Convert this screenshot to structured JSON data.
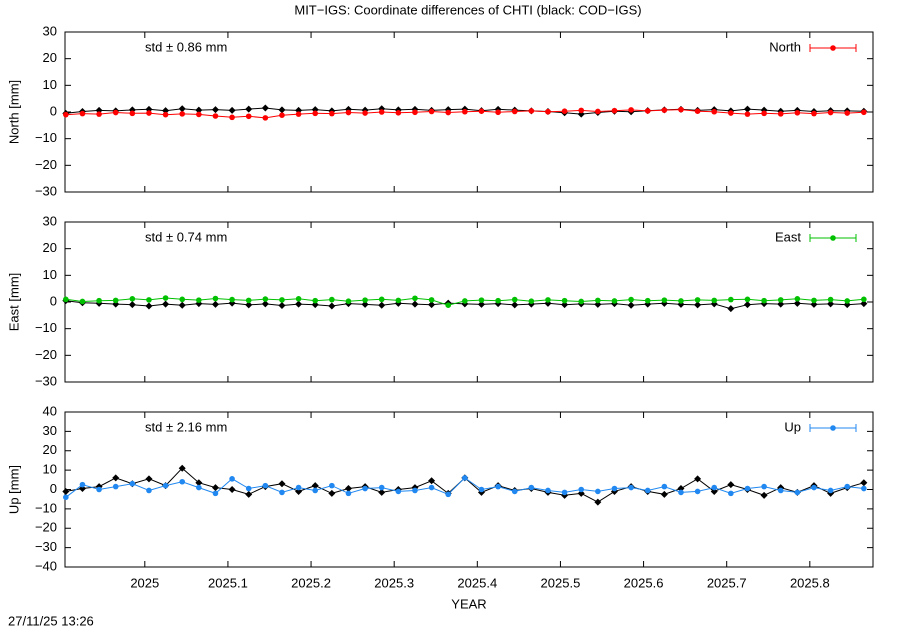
{
  "footer": "27/11/25 13:26",
  "chart_data": [
    {
      "type": "scatter",
      "title": "MIT−IGS: Coordinate differences of CHTI (black: COD−IGS)",
      "ylabel": "North [mm]",
      "annotation": "std ± 0.86 mm",
      "x": [
        2024.905,
        2024.925,
        2024.945,
        2024.965,
        2024.985,
        2025.005,
        2025.025,
        2025.045,
        2025.065,
        2025.085,
        2025.105,
        2025.125,
        2025.145,
        2025.165,
        2025.185,
        2025.205,
        2025.225,
        2025.245,
        2025.265,
        2025.285,
        2025.305,
        2025.325,
        2025.345,
        2025.365,
        2025.385,
        2025.405,
        2025.425,
        2025.445,
        2025.465,
        2025.485,
        2025.505,
        2025.525,
        2025.545,
        2025.565,
        2025.585,
        2025.605,
        2025.625,
        2025.645,
        2025.665,
        2025.685,
        2025.705,
        2025.725,
        2025.745,
        2025.765,
        2025.785,
        2025.805,
        2025.825,
        2025.845,
        2025.865
      ],
      "series": [
        {
          "color": "#000000",
          "values": [
            -0.5,
            0.2,
            0.6,
            0.4,
            0.8,
            1.0,
            0.5,
            1.2,
            0.7,
            0.9,
            0.6,
            1.1,
            1.5,
            0.8,
            0.6,
            0.9,
            0.4,
            1.0,
            0.7,
            1.2,
            0.8,
            1.0,
            0.6,
            0.9,
            1.1,
            0.5,
            1.0,
            0.7,
            0.4,
            0.2,
            -0.3,
            -0.8,
            -0.2,
            0.3,
            0.1,
            0.5,
            0.8,
            1.0,
            0.6,
            0.9,
            0.4,
            1.1,
            0.7,
            0.3,
            0.6,
            0.2,
            0.5,
            0.4,
            0.3
          ]
        },
        {
          "name": "North",
          "color": "#ff0000",
          "values": [
            -1.0,
            -0.6,
            -0.8,
            -0.2,
            -0.5,
            -0.4,
            -1.0,
            -0.7,
            -0.9,
            -1.5,
            -2.0,
            -1.6,
            -2.2,
            -1.2,
            -0.8,
            -0.5,
            -0.6,
            -0.2,
            -0.4,
            0.0,
            -0.3,
            -0.1,
            0.2,
            -0.2,
            0.1,
            0.3,
            -0.1,
            0.2,
            0.4,
            0.1,
            0.3,
            0.6,
            0.2,
            0.5,
            0.8,
            0.4,
            0.7,
            0.9,
            0.3,
            0.1,
            -0.4,
            -0.8,
            -0.5,
            -0.7,
            -0.3,
            -0.6,
            -0.2,
            -0.4,
            -0.1
          ]
        }
      ],
      "xlim": [
        2024.904,
        2025.876
      ],
      "ylim": [
        -30,
        30
      ],
      "yticks": [
        {
          "value": -30,
          "label": "−30"
        },
        {
          "value": -20,
          "label": "−20"
        },
        {
          "value": -10,
          "label": "−10"
        },
        0,
        10,
        20,
        30
      ]
    },
    {
      "type": "scatter",
      "ylabel": "East [mm]",
      "annotation": "std ± 0.74 mm",
      "x": [
        2024.905,
        2024.925,
        2024.945,
        2024.965,
        2024.985,
        2025.005,
        2025.025,
        2025.045,
        2025.065,
        2025.085,
        2025.105,
        2025.125,
        2025.145,
        2025.165,
        2025.185,
        2025.205,
        2025.225,
        2025.245,
        2025.265,
        2025.285,
        2025.305,
        2025.325,
        2025.345,
        2025.365,
        2025.385,
        2025.405,
        2025.425,
        2025.445,
        2025.465,
        2025.485,
        2025.505,
        2025.525,
        2025.545,
        2025.565,
        2025.585,
        2025.605,
        2025.625,
        2025.645,
        2025.665,
        2025.685,
        2025.705,
        2025.725,
        2025.745,
        2025.765,
        2025.785,
        2025.805,
        2025.825,
        2025.845,
        2025.865
      ],
      "series": [
        {
          "color": "#000000",
          "values": [
            0.5,
            -0.3,
            -0.5,
            -0.8,
            -1.0,
            -1.5,
            -0.8,
            -1.2,
            -0.6,
            -0.9,
            -0.4,
            -1.1,
            -0.7,
            -1.3,
            -0.8,
            -1.0,
            -1.5,
            -0.6,
            -0.9,
            -1.2,
            -0.5,
            -0.8,
            -1.0,
            -0.4,
            -0.7,
            -0.9,
            -0.6,
            -1.1,
            -0.8,
            -0.5,
            -1.0,
            -0.7,
            -0.9,
            -0.6,
            -1.2,
            -0.8,
            -0.5,
            -0.9,
            -1.1,
            -0.7,
            -2.5,
            -1.0,
            -0.6,
            -0.8,
            -0.5,
            -0.9,
            -0.7,
            -1.0,
            -0.6
          ]
        },
        {
          "name": "East",
          "color": "#00c000",
          "values": [
            1.0,
            0.2,
            0.5,
            0.6,
            1.2,
            0.8,
            1.5,
            1.0,
            0.7,
            1.3,
            0.9,
            0.6,
            1.1,
            0.8,
            1.2,
            0.5,
            0.9,
            0.3,
            0.7,
            1.0,
            0.6,
            1.4,
            0.8,
            -1.2,
            0.4,
            0.7,
            0.5,
            0.9,
            0.3,
            0.8,
            0.5,
            0.2,
            0.6,
            0.4,
            0.9,
            0.5,
            0.7,
            0.4,
            0.8,
            0.6,
            0.9,
            1.0,
            0.5,
            0.8,
            1.2,
            0.6,
            0.9,
            0.4,
            1.0
          ]
        }
      ],
      "xlim": [
        2024.904,
        2025.876
      ],
      "ylim": [
        -30,
        30
      ],
      "yticks": [
        {
          "value": -30,
          "label": "−30"
        },
        {
          "value": -20,
          "label": "−20"
        },
        {
          "value": -10,
          "label": "−10"
        },
        0,
        10,
        20,
        30
      ]
    },
    {
      "type": "scatter",
      "ylabel": "Up [mm]",
      "xlabel": "YEAR",
      "annotation": "std ± 2.16 mm",
      "x": [
        2024.905,
        2024.925,
        2024.945,
        2024.965,
        2024.985,
        2025.005,
        2025.025,
        2025.045,
        2025.065,
        2025.085,
        2025.105,
        2025.125,
        2025.145,
        2025.165,
        2025.185,
        2025.205,
        2025.225,
        2025.245,
        2025.265,
        2025.285,
        2025.305,
        2025.325,
        2025.345,
        2025.365,
        2025.385,
        2025.405,
        2025.425,
        2025.445,
        2025.465,
        2025.485,
        2025.505,
        2025.525,
        2025.545,
        2025.565,
        2025.585,
        2025.605,
        2025.625,
        2025.645,
        2025.665,
        2025.685,
        2025.705,
        2025.725,
        2025.745,
        2025.765,
        2025.785,
        2025.805,
        2025.825,
        2025.845,
        2025.865
      ],
      "series": [
        {
          "color": "#000000",
          "values": [
            -1.0,
            0.5,
            1.5,
            6.0,
            3.0,
            5.5,
            2.0,
            11.0,
            3.5,
            1.0,
            0.0,
            -2.5,
            1.5,
            3.0,
            -1.0,
            2.0,
            -2.0,
            0.5,
            1.5,
            -1.5,
            0.0,
            1.0,
            4.5,
            -2.0,
            6.0,
            -1.5,
            2.0,
            -0.5,
            0.5,
            -1.5,
            -3.0,
            -2.0,
            -6.5,
            -1.0,
            1.5,
            -1.0,
            -2.5,
            0.5,
            5.5,
            -1.0,
            2.5,
            0.0,
            -3.0,
            1.0,
            -1.5,
            2.0,
            -2.0,
            1.0,
            3.5
          ]
        },
        {
          "name": "Up",
          "color": "#2088f0",
          "values": [
            -4.0,
            2.5,
            0.0,
            1.5,
            3.0,
            -0.5,
            2.0,
            4.0,
            1.0,
            -2.0,
            5.5,
            0.5,
            2.0,
            -1.5,
            1.0,
            -0.5,
            2.0,
            -2.0,
            0.5,
            1.0,
            -1.0,
            -0.5,
            1.0,
            -2.5,
            6.0,
            0.0,
            1.5,
            -1.0,
            1.0,
            -0.5,
            -1.5,
            0.0,
            -1.0,
            0.5,
            1.0,
            -0.5,
            1.5,
            -1.5,
            -1.0,
            1.0,
            -2.0,
            0.5,
            1.5,
            -0.5,
            -1.5,
            1.0,
            -0.5,
            1.5,
            0.5
          ]
        }
      ],
      "xlim": [
        2024.904,
        2025.876
      ],
      "ylim": [
        -40,
        40
      ],
      "xticks": [
        2025,
        2025.1,
        2025.2,
        2025.3,
        2025.4,
        2025.5,
        2025.6,
        2025.7,
        2025.8
      ],
      "yticks": [
        {
          "value": -40,
          "label": "−40"
        },
        {
          "value": -30,
          "label": "−30"
        },
        {
          "value": -20,
          "label": "−20"
        },
        {
          "value": -10,
          "label": "−10"
        },
        0,
        10,
        20,
        30,
        40
      ]
    }
  ]
}
